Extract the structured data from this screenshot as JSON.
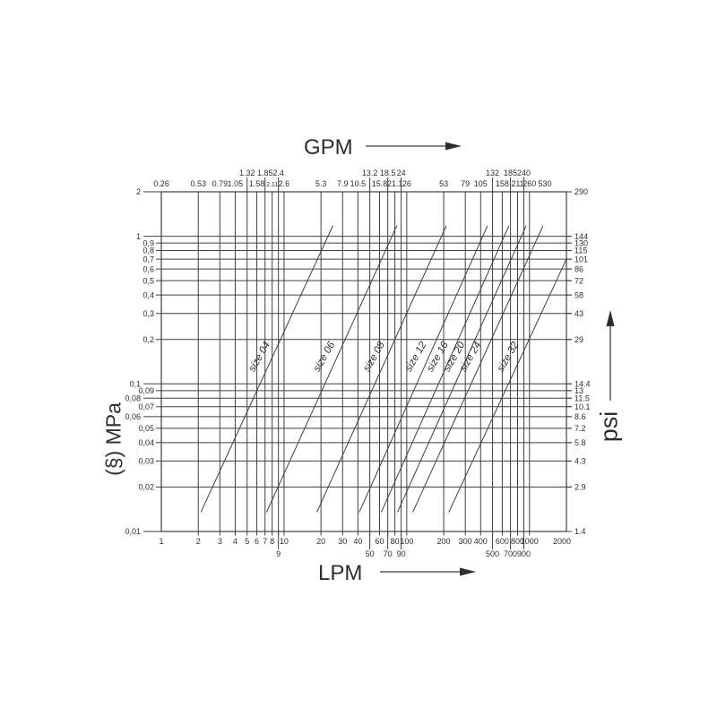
{
  "titles": {
    "top": "GPM",
    "bottom": "LPM",
    "left": "(§) MPa",
    "right": "psi"
  },
  "colors": {
    "ink": "#2e2e2e",
    "line": "#3f3f3f",
    "background": "#ffffff"
  },
  "chart_data": {
    "type": "line",
    "title": "",
    "grid": true,
    "scales": {
      "x_bottom": {
        "unit": "LPM",
        "type": "log",
        "range": [
          1,
          2000
        ]
      },
      "x_top": {
        "unit": "GPM",
        "type": "log",
        "range": [
          0.26,
          530
        ]
      },
      "y_left": {
        "unit": "MPa",
        "type": "log",
        "range": [
          0.01,
          2
        ]
      },
      "y_right": {
        "unit": "psi",
        "type": "log",
        "range": [
          1.4,
          290
        ]
      }
    },
    "gridlines": {
      "x_lpm": [
        2,
        3,
        4,
        5,
        6,
        7,
        8,
        9,
        10,
        20,
        30,
        40,
        50,
        60,
        70,
        80,
        90,
        100,
        200,
        300,
        400,
        500,
        600,
        700,
        800,
        900,
        1000
      ],
      "y_mpa": [
        0.02,
        0.03,
        0.04,
        0.05,
        0.06,
        0.07,
        0.08,
        0.09,
        0.1,
        0.2,
        0.3,
        0.4,
        0.5,
        0.6,
        0.7,
        0.8,
        0.9,
        1
      ]
    },
    "ticks": {
      "top": [
        {
          "v": 1,
          "label": "0.26",
          "row": 1
        },
        {
          "v": 2,
          "label": "0.53",
          "row": 1
        },
        {
          "v": 3,
          "label": "0.79",
          "row": 1
        },
        {
          "v": 4,
          "label": "1.05",
          "row": 1
        },
        {
          "v": 5,
          "label": "1.32",
          "row": 2
        },
        {
          "v": 6,
          "label": "1.58",
          "row": 1
        },
        {
          "v": 7,
          "label": "1.85",
          "row": 2
        },
        {
          "v": 8,
          "label": "2.11",
          "row": 1,
          "small": true
        },
        {
          "v": 9,
          "label": "2.4",
          "row": 2
        },
        {
          "v": 10,
          "label": "2.6",
          "row": 1
        },
        {
          "v": 20,
          "label": "5.3",
          "row": 1
        },
        {
          "v": 30,
          "label": "7.9",
          "row": 1
        },
        {
          "v": 40,
          "label": "10.5",
          "row": 1
        },
        {
          "v": 50,
          "label": "13.2",
          "row": 2
        },
        {
          "v": 60,
          "label": "15.8",
          "row": 1
        },
        {
          "v": 70,
          "label": "18.5",
          "row": 2
        },
        {
          "v": 80,
          "label": "21.1",
          "row": 1
        },
        {
          "v": 90,
          "label": "24",
          "row": 2
        },
        {
          "v": 100,
          "label": "26",
          "row": 1
        },
        {
          "v": 200,
          "label": "53",
          "row": 1
        },
        {
          "v": 300,
          "label": "79",
          "row": 1
        },
        {
          "v": 400,
          "label": "105",
          "row": 1
        },
        {
          "v": 500,
          "label": "132",
          "row": 2
        },
        {
          "v": 600,
          "label": "158",
          "row": 1
        },
        {
          "v": 700,
          "label": "185",
          "row": 2
        },
        {
          "v": 800,
          "label": "211",
          "row": 1
        },
        {
          "v": 900,
          "label": "240",
          "row": 2
        },
        {
          "v": 1000,
          "label": "260",
          "row": 1
        },
        {
          "v": 2000,
          "label": "530",
          "row": 1,
          "dx": -24
        }
      ],
      "bottom": [
        {
          "v": 1,
          "label": "1",
          "row": 1
        },
        {
          "v": 2,
          "label": "2",
          "row": 1
        },
        {
          "v": 3,
          "label": "3",
          "row": 1
        },
        {
          "v": 4,
          "label": "4",
          "row": 1
        },
        {
          "v": 5,
          "label": "5",
          "row": 1
        },
        {
          "v": 6,
          "label": "6",
          "row": 1
        },
        {
          "v": 7,
          "label": "7",
          "row": 1
        },
        {
          "v": 8,
          "label": "8",
          "row": 1
        },
        {
          "v": 9,
          "label": "9",
          "row": 2
        },
        {
          "v": 10,
          "label": "10",
          "row": 1
        },
        {
          "v": 20,
          "label": "20",
          "row": 1
        },
        {
          "v": 30,
          "label": "30",
          "row": 1
        },
        {
          "v": 40,
          "label": "40",
          "row": 1
        },
        {
          "v": 50,
          "label": "50",
          "row": 2
        },
        {
          "v": 60,
          "label": "60",
          "row": 1
        },
        {
          "v": 70,
          "label": "70",
          "row": 2
        },
        {
          "v": 80,
          "label": "80",
          "row": 1
        },
        {
          "v": 90,
          "label": "90",
          "row": 2
        },
        {
          "v": 100,
          "label": "100",
          "row": 1
        },
        {
          "v": 200,
          "label": "200",
          "row": 1
        },
        {
          "v": 300,
          "label": "300",
          "row": 1
        },
        {
          "v": 400,
          "label": "400",
          "row": 1
        },
        {
          "v": 500,
          "label": "500",
          "row": 2
        },
        {
          "v": 600,
          "label": "600",
          "row": 1
        },
        {
          "v": 700,
          "label": "700",
          "row": 2
        },
        {
          "v": 800,
          "label": "800",
          "row": 1
        },
        {
          "v": 900,
          "label": "900",
          "row": 2
        },
        {
          "v": 1000,
          "label": "1000",
          "row": 1
        },
        {
          "v": 2000,
          "label": "2000",
          "row": 1,
          "dx": -5
        }
      ],
      "left": [
        {
          "v": 2,
          "label": "2",
          "out": true
        },
        {
          "v": 1,
          "label": "1",
          "out": true
        },
        {
          "v": 0.9,
          "label": "0,9"
        },
        {
          "v": 0.8,
          "label": "0,8"
        },
        {
          "v": 0.7,
          "label": "0,7"
        },
        {
          "v": 0.6,
          "label": "0,6"
        },
        {
          "v": 0.5,
          "label": "0,5"
        },
        {
          "v": 0.4,
          "label": "0,4"
        },
        {
          "v": 0.3,
          "label": "0,3"
        },
        {
          "v": 0.2,
          "label": "0,2"
        },
        {
          "v": 0.1,
          "label": "0,1",
          "out": true
        },
        {
          "v": 0.09,
          "label": "0,09"
        },
        {
          "v": 0.08,
          "label": "0,08",
          "out": true
        },
        {
          "v": 0.07,
          "label": "0,07"
        },
        {
          "v": 0.06,
          "label": "0,06",
          "out": true
        },
        {
          "v": 0.05,
          "label": "0,05"
        },
        {
          "v": 0.04,
          "label": "0,04"
        },
        {
          "v": 0.03,
          "label": "0,03"
        },
        {
          "v": 0.02,
          "label": "0,02"
        },
        {
          "v": 0.01,
          "label": "0,01",
          "out": true
        }
      ],
      "right": [
        {
          "v": 2,
          "label": "290"
        },
        {
          "v": 1,
          "label": "144"
        },
        {
          "v": 0.9,
          "label": "130"
        },
        {
          "v": 0.8,
          "label": "115"
        },
        {
          "v": 0.7,
          "label": "101"
        },
        {
          "v": 0.6,
          "label": "86"
        },
        {
          "v": 0.5,
          "label": "72"
        },
        {
          "v": 0.4,
          "label": "58"
        },
        {
          "v": 0.3,
          "label": "43"
        },
        {
          "v": 0.2,
          "label": "29"
        },
        {
          "v": 0.1,
          "label": "14.4"
        },
        {
          "v": 0.09,
          "label": "13"
        },
        {
          "v": 0.08,
          "label": "11.5"
        },
        {
          "v": 0.07,
          "label": "10.1"
        },
        {
          "v": 0.06,
          "label": "8.6"
        },
        {
          "v": 0.05,
          "label": "7.2"
        },
        {
          "v": 0.04,
          "label": "5.8"
        },
        {
          "v": 0.03,
          "label": "4.3"
        },
        {
          "v": 0.02,
          "label": "2.9"
        },
        {
          "v": 0.01,
          "label": "1.4"
        }
      ]
    },
    "series": [
      {
        "name": "size 04",
        "from": [
          2.1,
          0.0135
        ],
        "to": [
          25,
          1.18
        ]
      },
      {
        "name": "size 06",
        "from": [
          7.2,
          0.0135
        ],
        "to": [
          83,
          1.18
        ]
      },
      {
        "name": "size 08",
        "from": [
          18.5,
          0.0135
        ],
        "to": [
          210,
          1.18
        ]
      },
      {
        "name": "size 12",
        "from": [
          41,
          0.0135
        ],
        "to": [
          455,
          1.18
        ]
      },
      {
        "name": "size 16",
        "from": [
          62,
          0.0135
        ],
        "to": [
          680,
          1.18
        ]
      },
      {
        "name": "size 20",
        "from": [
          84,
          0.0135
        ],
        "to": [
          940,
          1.18
        ]
      },
      {
        "name": "size 24",
        "from": [
          112,
          0.0135
        ],
        "to": [
          1290,
          1.18
        ]
      },
      {
        "name": "size 32",
        "from": [
          220,
          0.0135
        ],
        "to": [
          2000,
          0.7
        ]
      }
    ]
  }
}
